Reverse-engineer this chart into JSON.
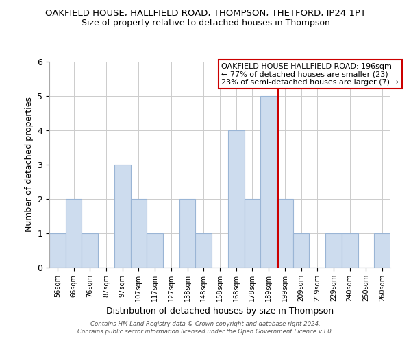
{
  "title": "OAKFIELD HOUSE, HALLFIELD ROAD, THOMPSON, THETFORD, IP24 1PT",
  "subtitle": "Size of property relative to detached houses in Thompson",
  "xlabel": "Distribution of detached houses by size in Thompson",
  "ylabel": "Number of detached properties",
  "bin_labels": [
    "56sqm",
    "66sqm",
    "76sqm",
    "87sqm",
    "97sqm",
    "107sqm",
    "117sqm",
    "127sqm",
    "138sqm",
    "148sqm",
    "158sqm",
    "168sqm",
    "178sqm",
    "189sqm",
    "199sqm",
    "209sqm",
    "219sqm",
    "229sqm",
    "240sqm",
    "250sqm",
    "260sqm"
  ],
  "bar_heights": [
    1,
    2,
    1,
    0,
    3,
    2,
    1,
    0,
    2,
    1,
    0,
    4,
    2,
    5,
    2,
    1,
    0,
    1,
    1,
    0,
    1
  ],
  "bar_color": "#cddcee",
  "bar_edge_color": "#9ab5d5",
  "vline_x": 13.6,
  "vline_color": "#cc0000",
  "annotation_box_text": "OAKFIELD HOUSE HALLFIELD ROAD: 196sqm\n← 77% of detached houses are smaller (23)\n23% of semi-detached houses are larger (7) →",
  "ylim": [
    0,
    6
  ],
  "yticks": [
    0,
    1,
    2,
    3,
    4,
    5,
    6
  ],
  "footnote": "Contains HM Land Registry data © Crown copyright and database right 2024.\nContains public sector information licensed under the Open Government Licence v3.0.",
  "bg_color": "#ffffff",
  "grid_color": "#cccccc"
}
